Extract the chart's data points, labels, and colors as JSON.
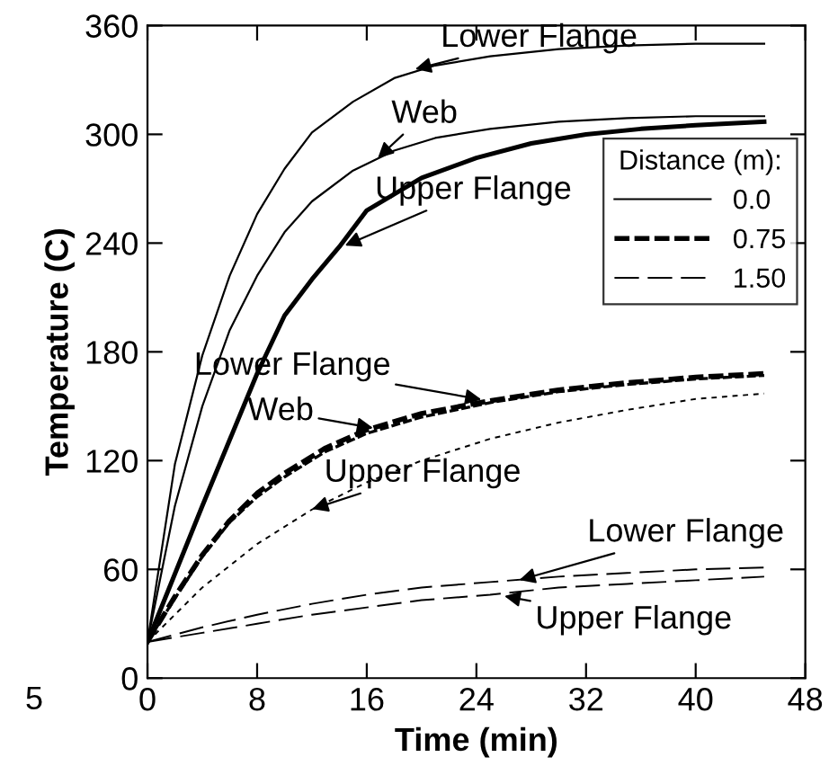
{
  "chart_data": {
    "type": "line",
    "xlabel": "Time (min)",
    "ylabel": "Temperature (C)",
    "legend_title": "Distance (m):",
    "legend": "right",
    "grid": false,
    "marker": "none",
    "xlim": [
      0,
      48
    ],
    "xticks": [
      0,
      8,
      16,
      24,
      32,
      40,
      48
    ],
    "ylim": [
      0,
      360
    ],
    "yticks": [
      0,
      60,
      120,
      180,
      240,
      300,
      360
    ],
    "series": [
      {
        "name": "0.0",
        "color": "#000000",
        "line_style": "solid",
        "x": [
          0,
          2,
          4,
          6,
          8,
          10,
          12,
          15,
          18,
          21,
          25,
          30,
          35,
          40,
          45
        ],
        "values": [
          20,
          118,
          178,
          222,
          256,
          281,
          301,
          318,
          331,
          338,
          343,
          347,
          349,
          350,
          350
        ]
      },
      {
        "color": "#000000",
        "line_style": "solid",
        "x": [
          0,
          2,
          4,
          6,
          8,
          10,
          12,
          15,
          18,
          21,
          25,
          30,
          35,
          40,
          45
        ],
        "values": [
          20,
          95,
          150,
          192,
          222,
          246,
          263,
          280,
          291,
          298,
          303,
          307,
          309,
          310,
          310
        ]
      },
      {
        "color": "#000000",
        "line_style": "solid",
        "x": [
          0,
          4,
          8,
          10,
          12,
          14,
          16,
          20,
          24,
          28,
          32,
          36,
          40,
          45
        ],
        "values": [
          20,
          95,
          168,
          200,
          220,
          238,
          258,
          276,
          287,
          295,
          300,
          303,
          305,
          307
        ]
      },
      {
        "name": "0.75",
        "color": "#000000",
        "line_style": "dashed",
        "x": [
          0,
          2,
          4,
          6,
          8,
          10,
          13,
          16,
          20,
          25,
          30,
          35,
          40,
          45
        ],
        "values": [
          20,
          45,
          68,
          87,
          102,
          113,
          127,
          137,
          146,
          153,
          159,
          163,
          166,
          168
        ]
      },
      {
        "color": "#000000",
        "line_style": "dashed",
        "x": [
          0,
          2,
          4,
          6,
          8,
          10,
          13,
          16,
          20,
          25,
          30,
          35,
          40,
          45
        ],
        "values": [
          20,
          44,
          67,
          86,
          100,
          111,
          125,
          135,
          144,
          152,
          158,
          162,
          165,
          167
        ]
      },
      {
        "color": "#000000",
        "line_style": "dotted",
        "x": [
          0,
          4,
          8,
          12,
          16,
          20,
          25,
          30,
          35,
          40,
          45
        ],
        "values": [
          20,
          50,
          74,
          93,
          108,
          120,
          132,
          141,
          148,
          154,
          157
        ]
      },
      {
        "name": "1.50",
        "color": "#000000",
        "line_style": "dashed",
        "x": [
          0,
          4,
          8,
          12,
          16,
          20,
          25,
          30,
          35,
          40,
          45
        ],
        "values": [
          20,
          28,
          35,
          41,
          46,
          50,
          53,
          56,
          58,
          60,
          61
        ]
      },
      {
        "color": "#000000",
        "line_style": "dashed",
        "x": [
          0,
          4,
          8,
          12,
          16,
          20,
          25,
          30,
          35,
          40,
          45
        ],
        "values": [
          20,
          25,
          30,
          35,
          39,
          43,
          46,
          50,
          52,
          54,
          56
        ]
      }
    ],
    "annotations": [
      {
        "text": "Lower Flange",
        "x": 19,
        "y": 335
      },
      {
        "text": "Web",
        "x": 16.4,
        "y": 284
      },
      {
        "text": "Upper Flange",
        "x": 13.9,
        "y": 237
      },
      {
        "text": "Lower Flange",
        "x": 24.9,
        "y": 153
      },
      {
        "text": "Web",
        "x": 17,
        "y": 137.25
      },
      {
        "text": "Upper Flange",
        "x": 11.5,
        "y": 92
      },
      {
        "text": "Lower Flange",
        "x": 26.6,
        "y": 53
      },
      {
        "text": "Upper Flange",
        "x": 25.5,
        "y": 46
      },
      "5"
    ]
  }
}
